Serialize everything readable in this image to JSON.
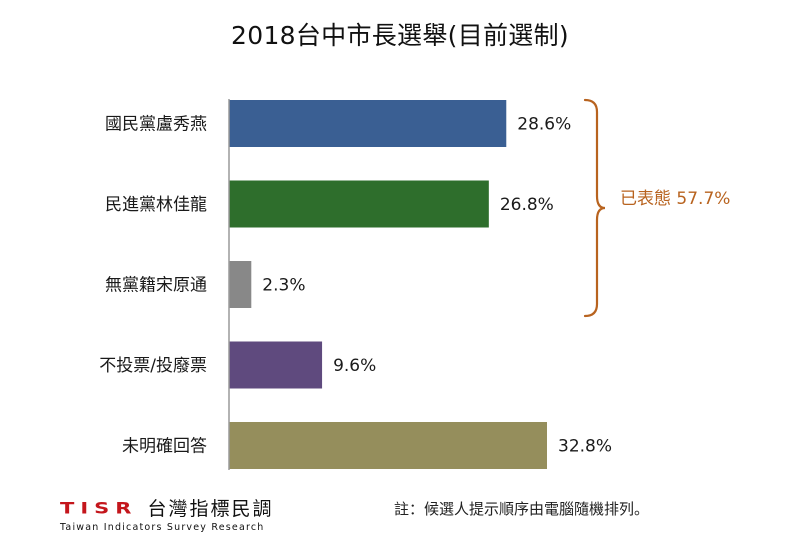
{
  "chart_data": {
    "type": "bar",
    "orientation": "horizontal",
    "title": "2018台中市長選舉(目前選制)",
    "categories": [
      "國民黨盧秀燕",
      "民進黨林佳龍",
      "無黨籍宋原通",
      "不投票/投廢票",
      "未明確回答"
    ],
    "values": [
      28.6,
      26.8,
      2.3,
      9.6,
      32.8
    ],
    "value_labels": [
      "28.6%",
      "26.8%",
      "2.3%",
      "9.6%",
      "32.8%"
    ],
    "colors": [
      "#3a5f93",
      "#2e6e2c",
      "#888888",
      "#5f4a7e",
      "#958e5c"
    ],
    "xlim": [
      0,
      32.8
    ],
    "grid": false,
    "bracket": {
      "label": "已表態 57.7%",
      "spans": [
        0,
        2
      ],
      "color": "#b8631f"
    }
  },
  "footer": {
    "note": "註：候選人提示順序由電腦隨機排列。",
    "logo_code": "TISR",
    "logo_name": "台灣指標民調",
    "logo_sub": "Taiwan Indicators Survey Research"
  }
}
